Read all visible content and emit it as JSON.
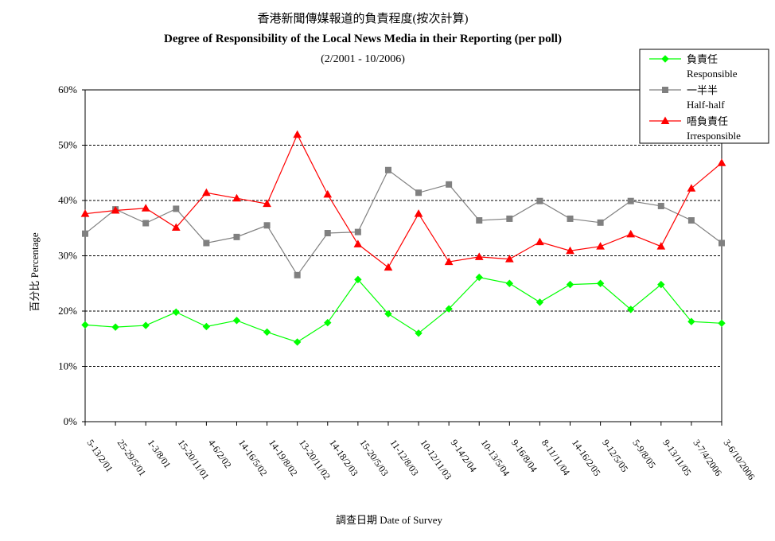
{
  "chart_data": {
    "type": "line",
    "title_zh": "香港新聞傳媒報道的負責程度(按次計算)",
    "title": "Degree of Responsibility of the Local News Media in their Reporting (per poll)",
    "subtitle": "(2/2001 - 10/2006)",
    "xlabel": "調查日期 Date of Survey",
    "ylabel": "百分比 Percentage",
    "ylim": [
      0,
      60
    ],
    "yticks": [
      "0%",
      "10%",
      "20%",
      "30%",
      "40%",
      "50%",
      "60%"
    ],
    "grid": "horizontal dashed",
    "legend_position": "top-right",
    "categories": [
      "5-13/2/01",
      "25-29/5/01",
      "1-3/8/01",
      "15-20/11/01",
      "4-6/2/02",
      "14-16/5/02",
      "14-19/8/02",
      "13-20/11/02",
      "14-18/2/03",
      "15-20/5/03",
      "11-12/8/03",
      "10-12/11/03",
      "9-14/2/04",
      "10-13/5/04",
      "9-16/8/04",
      "8-11/11/04",
      "14-16/2/05",
      "9-12/5/05",
      "5-9/8/05",
      "9-13/11/05",
      "3-7/4/2006",
      "3-6/10/2006"
    ],
    "series": [
      {
        "name": "負責任",
        "name_en": "Responsible",
        "color": "#00ff00",
        "marker": "diamond",
        "values": [
          17.5,
          17.1,
          17.4,
          19.8,
          17.2,
          18.3,
          16.2,
          14.4,
          17.9,
          25.7,
          19.5,
          16.0,
          20.4,
          26.1,
          25.0,
          21.6,
          24.8,
          25.0,
          20.3,
          24.8,
          18.1,
          17.8
        ]
      },
      {
        "name": "一半半",
        "name_en": "Half-half",
        "color": "#808080",
        "marker": "square",
        "values": [
          34.0,
          38.4,
          35.9,
          38.5,
          32.3,
          33.4,
          35.5,
          26.5,
          34.1,
          34.3,
          45.5,
          41.4,
          42.9,
          36.4,
          36.7,
          39.9,
          36.7,
          36.0,
          39.9,
          39.0,
          36.4,
          32.3
        ]
      },
      {
        "name": "唔負責任",
        "name_en": "Irresponsible",
        "color": "#ff0000",
        "marker": "triangle",
        "values": [
          37.6,
          38.2,
          38.6,
          35.1,
          41.4,
          40.4,
          39.4,
          51.9,
          41.1,
          32.1,
          27.9,
          37.6,
          28.9,
          29.8,
          29.4,
          32.5,
          30.9,
          31.7,
          33.9,
          31.7,
          42.2,
          46.8
        ]
      }
    ]
  }
}
